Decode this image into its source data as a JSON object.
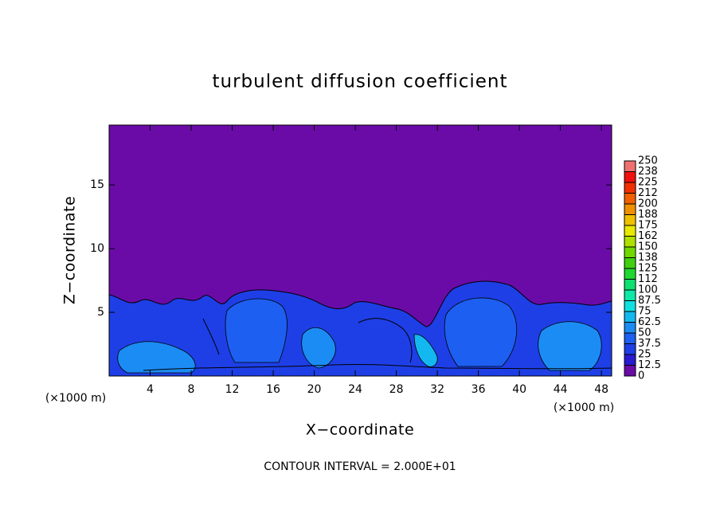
{
  "chart_data": {
    "type": "contour",
    "title": "turbulent diffusion coefficient",
    "x_label": "X−coordinate",
    "y_label": "Z−coordinate",
    "x_unit_label": "(×1000 m)",
    "footer": "CONTOUR INTERVAL = 2.000E+01",
    "xlim": [
      0,
      49
    ],
    "ylim": [
      0,
      19.7
    ],
    "xticks": [
      4,
      8,
      12,
      16,
      20,
      24,
      28,
      32,
      36,
      40,
      44,
      48
    ],
    "yticks": [
      5,
      10,
      15
    ],
    "colorbar": {
      "ticks": [
        0,
        12.5,
        25,
        37.5,
        50,
        62.5,
        75,
        87.5,
        100,
        {
          "value": 112.5,
          "label": "112"
        },
        125,
        {
          "value": 137.5,
          "label": "138"
        },
        150,
        {
          "value": 162.5,
          "label": "162"
        },
        175,
        {
          "value": 187.5,
          "label": "188"
        },
        200,
        {
          "value": 212.5,
          "label": "212"
        },
        225,
        {
          "value": 237.5,
          "label": "238"
        },
        250
      ],
      "colors": [
        "#6a0ba8",
        "#2a1ad0",
        "#1e3fe6",
        "#1d5ff0",
        "#1c8cf5",
        "#14b8f0",
        "#10e0e0",
        "#10e8a8",
        "#10e070",
        "#20d830",
        "#40d010",
        "#70d800",
        "#b0e000",
        "#e8e800",
        "#f0c000",
        "#f09000",
        "#f06000",
        "#f03000",
        "#f01010",
        "#f07070"
      ]
    }
  }
}
